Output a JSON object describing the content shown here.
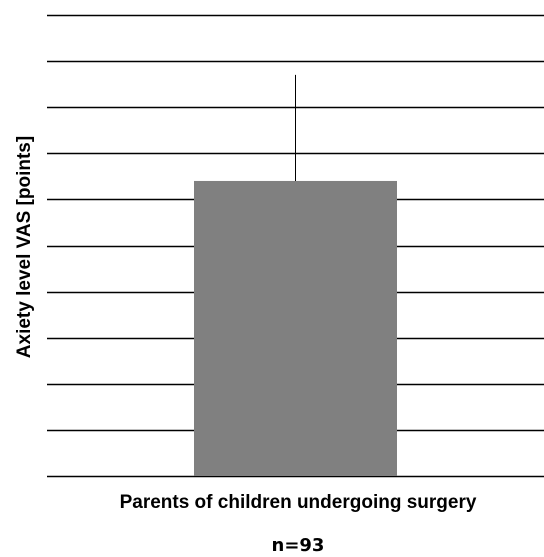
{
  "chart_data": {
    "type": "bar",
    "title": "",
    "categories": [
      "Parents of children undergoing surgery"
    ],
    "values": [
      6.4
    ],
    "error_bars": [
      2.3
    ],
    "ylabel": "Axiety level VAS  [points]",
    "xlabel": "",
    "annotations": [
      "n=93"
    ],
    "ylim": [
      0,
      10
    ],
    "grid": true,
    "bar_color": "#808080",
    "error_bar_color": "#000000"
  }
}
